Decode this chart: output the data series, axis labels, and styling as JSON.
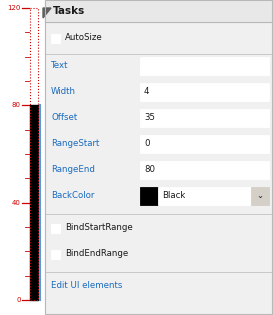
{
  "bg_color": "#f0f0f0",
  "panel_bg": "#f0f0f0",
  "white": "#ffffff",
  "border_color": "#b8b8b8",
  "text_color": "#1a1a1a",
  "blue_text": "#1a6bbf",
  "red_color": "#cc0000",
  "title": "Tasks",
  "fields": [
    {
      "label": "Text",
      "value": ""
    },
    {
      "label": "Width",
      "value": "4"
    },
    {
      "label": "Offset",
      "value": "35"
    },
    {
      "label": "RangeStart",
      "value": "0"
    },
    {
      "label": "RangeEnd",
      "value": "80"
    }
  ],
  "checkbox_items": [
    "AutoSize",
    "BindStartRange",
    "BindEndRange"
  ],
  "backcolor_label": "BackColor",
  "backcolor_value": "Black",
  "edit_link": "Edit UI elements",
  "gauge_ticks": [
    0,
    40,
    80,
    120
  ],
  "gauge_minor_ticks": [
    10,
    20,
    30,
    50,
    60,
    70,
    90,
    100,
    110
  ],
  "title_fontsize": 7.5,
  "label_fontsize": 6.2,
  "tick_fontsize": 5.0
}
